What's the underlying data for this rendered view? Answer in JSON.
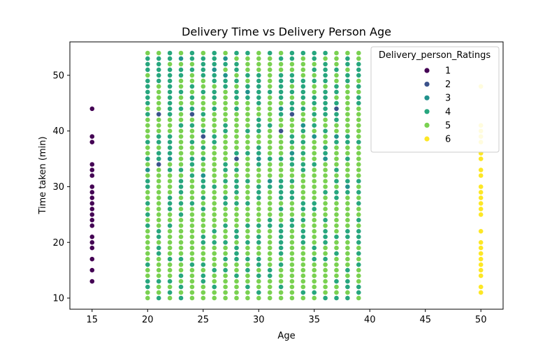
{
  "chart_data": {
    "type": "scatter",
    "title": "Delivery Time vs Delivery Person Age",
    "xlabel": "Age",
    "ylabel": "Time taken (min)",
    "xlim": [
      13,
      52
    ],
    "ylim": [
      8,
      56
    ],
    "xticks": [
      15,
      20,
      25,
      30,
      35,
      40,
      45,
      50
    ],
    "yticks": [
      10,
      20,
      30,
      40,
      50
    ],
    "grid": false,
    "legend": {
      "title": "Delivery_person_Ratings",
      "placement": "top-right",
      "entries": [
        {
          "label": "1",
          "color": "#440154"
        },
        {
          "label": "2",
          "color": "#3b528b"
        },
        {
          "label": "3",
          "color": "#21918c"
        },
        {
          "label": "4",
          "color": "#27a67e"
        },
        {
          "label": "5",
          "color": "#7ad151"
        },
        {
          "label": "6",
          "color": "#fde725"
        }
      ]
    },
    "series": [
      {
        "name": "1",
        "color": "#440154",
        "points": [
          [
            15,
            13
          ],
          [
            15,
            15
          ],
          [
            15,
            17
          ],
          [
            15,
            19
          ],
          [
            15,
            20
          ],
          [
            15,
            21
          ],
          [
            15,
            23
          ],
          [
            15,
            24
          ],
          [
            15,
            25
          ],
          [
            15,
            26
          ],
          [
            15,
            27
          ],
          [
            15,
            28
          ],
          [
            15,
            29
          ],
          [
            15,
            30
          ],
          [
            15,
            32
          ],
          [
            15,
            33
          ],
          [
            15,
            34
          ],
          [
            15,
            38
          ],
          [
            15,
            39
          ],
          [
            15,
            44
          ]
        ]
      },
      {
        "name": "2",
        "color": "#3b528b",
        "points": [
          [
            21,
            34
          ],
          [
            21,
            43
          ],
          [
            24,
            43
          ],
          [
            25,
            39
          ],
          [
            28,
            35
          ],
          [
            32,
            40
          ],
          [
            33,
            43
          ],
          [
            37,
            44
          ]
        ]
      },
      {
        "name": "3",
        "color": "#21918c",
        "points": [
          [
            20,
            33
          ],
          [
            22,
            35
          ],
          [
            23,
            53
          ],
          [
            25,
            32
          ],
          [
            26,
            51
          ],
          [
            27,
            50
          ],
          [
            27,
            53
          ],
          [
            29,
            47
          ],
          [
            30,
            35
          ],
          [
            31,
            31
          ],
          [
            32,
            44
          ],
          [
            33,
            36
          ],
          [
            34,
            41
          ],
          [
            35,
            39
          ],
          [
            36,
            35
          ],
          [
            37,
            39
          ],
          [
            38,
            30
          ]
        ]
      },
      {
        "name": "4",
        "color": "#27a67e",
        "grid": {
          "x": [
            20,
            39
          ],
          "y": [
            10,
            54
          ]
        }
      },
      {
        "name": "6",
        "color": "#fde725",
        "points": [
          [
            50,
            11
          ],
          [
            50,
            12
          ],
          [
            50,
            14
          ],
          [
            50,
            15
          ],
          [
            50,
            16
          ],
          [
            50,
            17
          ],
          [
            50,
            18
          ],
          [
            50,
            19
          ],
          [
            50,
            20
          ],
          [
            50,
            22
          ],
          [
            50,
            25
          ],
          [
            50,
            26
          ],
          [
            50,
            27
          ],
          [
            50,
            28
          ],
          [
            50,
            29
          ],
          [
            50,
            30
          ],
          [
            50,
            32
          ],
          [
            50,
            33
          ],
          [
            50,
            35
          ],
          [
            50,
            36
          ],
          [
            50,
            38
          ],
          [
            50,
            39
          ],
          [
            50,
            40
          ],
          [
            50,
            41
          ],
          [
            50,
            48
          ]
        ]
      }
    ]
  }
}
